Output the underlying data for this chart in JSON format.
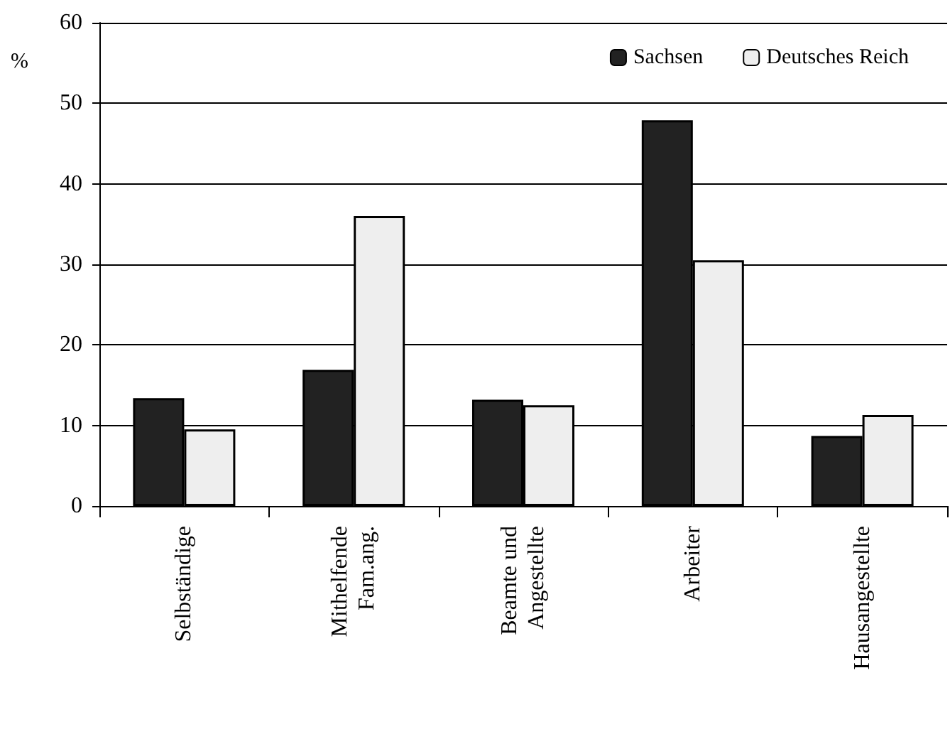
{
  "chart_data": {
    "type": "bar",
    "ylabel": "%",
    "categories": [
      "Selbständige",
      "Mithelfende\nFam.ang.",
      "Beamte und\nAngestellte",
      "Arbeiter",
      "Hausangestellte"
    ],
    "series": [
      {
        "name": "Sachsen",
        "color": "#222222",
        "values": [
          13.4,
          16.9,
          13.2,
          47.9,
          8.7
        ]
      },
      {
        "name": "Deutsches Reich",
        "color": "#eeeeee",
        "values": [
          9.5,
          36.0,
          12.5,
          30.5,
          11.3
        ]
      }
    ],
    "ylim": [
      0,
      60
    ],
    "yticks": [
      0,
      10,
      20,
      30,
      40,
      50,
      60
    ],
    "grid": "y",
    "legend": "top right"
  }
}
